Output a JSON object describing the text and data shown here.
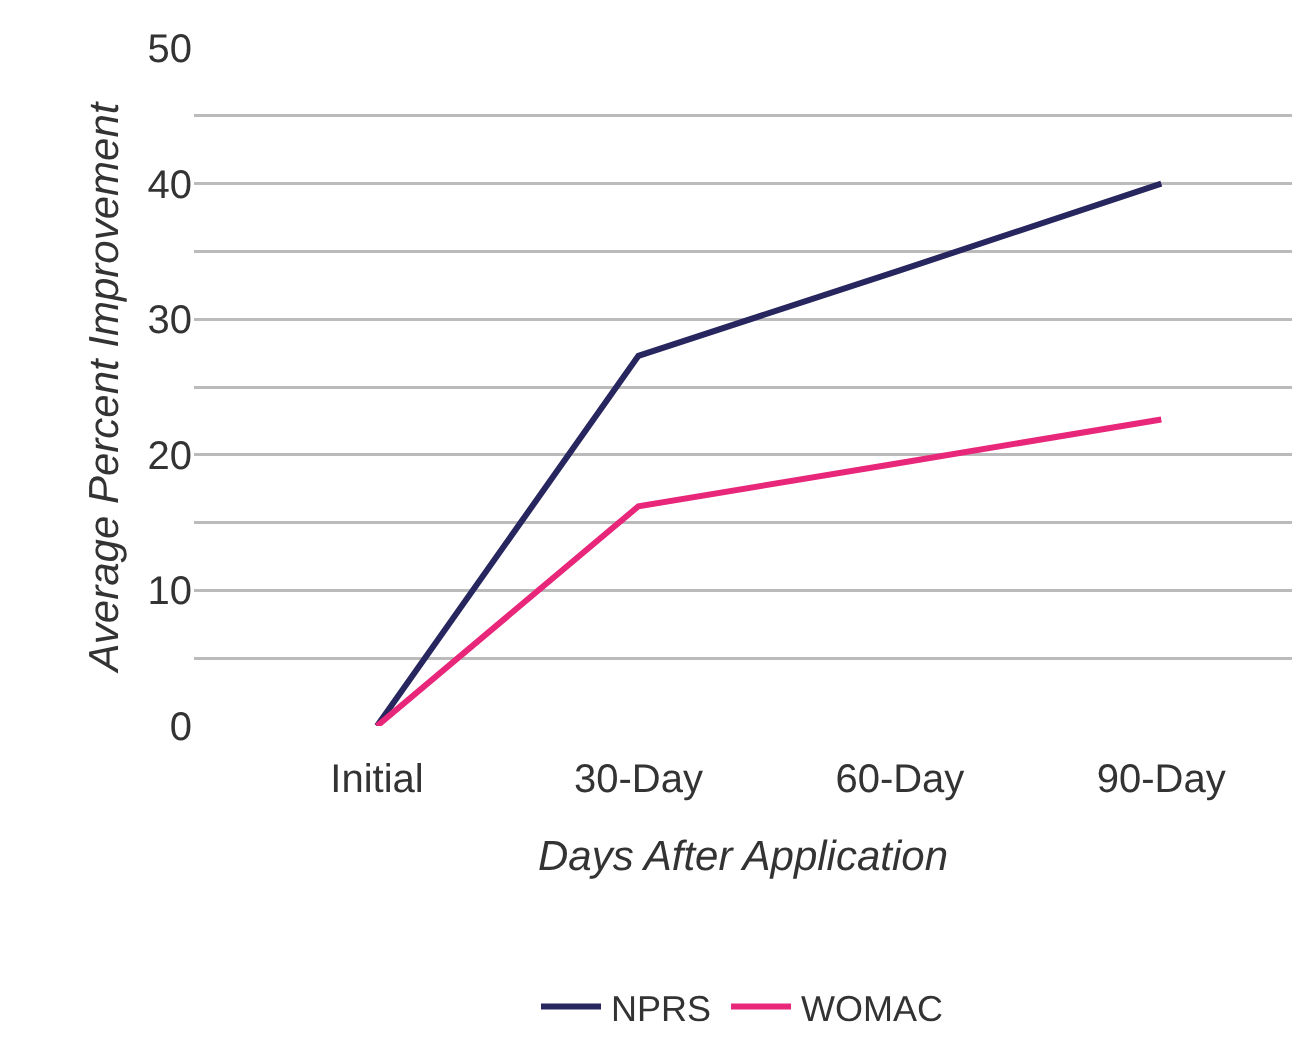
{
  "chart_data": {
    "type": "line",
    "xlabel": "Days After Application",
    "ylabel": "Average Percent Improvement",
    "categories": [
      "Initial",
      "30-Day",
      "60-Day",
      "90-Day"
    ],
    "series": [
      {
        "name": "NPRS",
        "color": "#27265f",
        "values": [
          0,
          27.3,
          33.6,
          40
        ]
      },
      {
        "name": "WOMAC",
        "color": "#e8267a",
        "values": [
          0,
          16.2,
          19.4,
          22.6
        ]
      }
    ],
    "ylim": [
      0,
      50
    ],
    "yticks": [
      0,
      {
        "value": 5,
        "label": null
      },
      10,
      {
        "value": 15,
        "label": null
      },
      20,
      {
        "value": 25,
        "label": null
      },
      30,
      {
        "value": 35,
        "label": null
      },
      40,
      {
        "value": 45,
        "label": null
      },
      50
    ],
    "grid": "y",
    "legend": "bottom",
    "marker": "none",
    "line_style": "solid"
  }
}
